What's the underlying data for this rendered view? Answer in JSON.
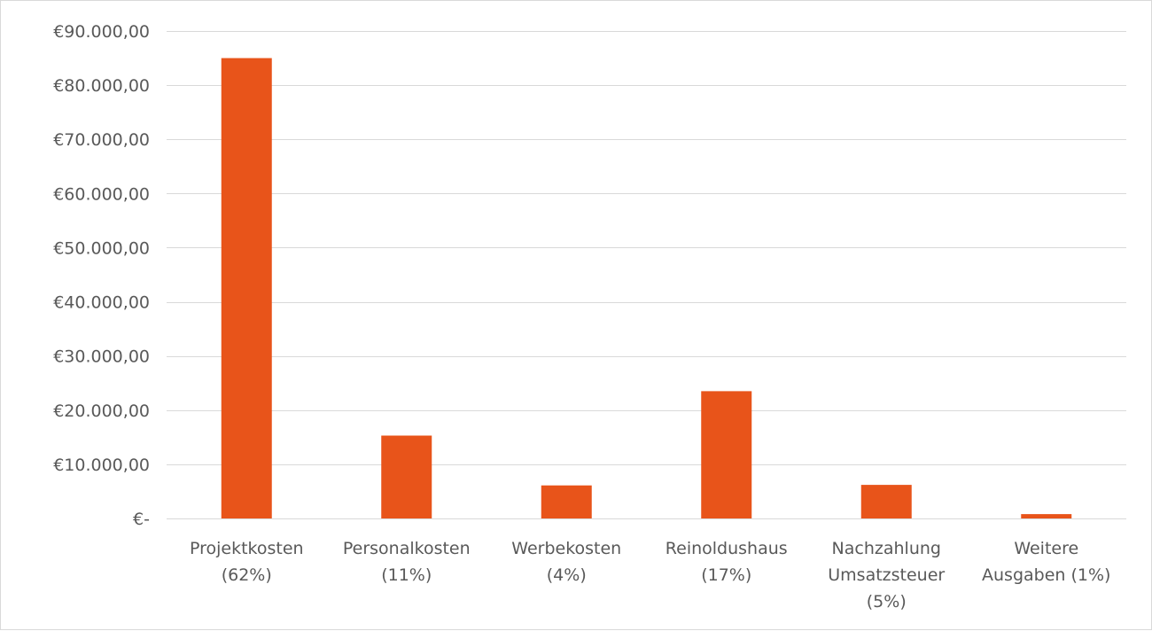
{
  "chart_data": {
    "type": "bar",
    "title": "",
    "xlabel": "",
    "ylabel": "",
    "categories": [
      [
        "Projektkosten",
        "(62%)"
      ],
      [
        "Personalkosten",
        "(11%)"
      ],
      [
        "Werbekosten",
        "(4%)"
      ],
      [
        "Reinoldushaus",
        "(17%)"
      ],
      [
        "Nachzahlung",
        "Umsatzsteuer",
        "(5%)"
      ],
      [
        "Weitere",
        "Ausgaben (1%)"
      ]
    ],
    "values": [
      85000,
      15300,
      6100,
      23500,
      6200,
      800
    ],
    "ylim": [
      0,
      90000
    ],
    "y_ticks": [
      0,
      10000,
      20000,
      30000,
      40000,
      50000,
      60000,
      70000,
      80000,
      90000
    ],
    "y_tick_labels": [
      "€-",
      "€10.000,00",
      "€20.000,00",
      "€30.000,00",
      "€40.000,00",
      "€50.000,00",
      "€60.000,00",
      "€70.000,00",
      "€80.000,00",
      "€90.000,00"
    ],
    "grid": true,
    "legend": "none",
    "bar_color": "#e8541a"
  }
}
